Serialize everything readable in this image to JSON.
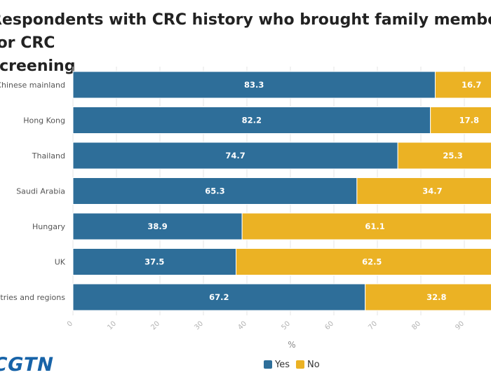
{
  "title": "Respondents with CRC history who brought family members for CRC\nscreening",
  "logo_text": "CGTN",
  "colors": {
    "yes": "#2e6e99",
    "no": "#ebb224",
    "grid": "#e6e6e6"
  },
  "chart_data": {
    "type": "bar",
    "orientation": "horizontal",
    "stacked": true,
    "categories": [
      "Chinese mainland",
      "Hong Kong",
      "Thailand",
      "Saudi Arabia",
      "Hungary",
      "UK",
      "Other countries and regions"
    ],
    "series": [
      {
        "name": "Yes",
        "values": [
          83.3,
          82.2,
          74.7,
          65.3,
          38.9,
          37.5,
          67.2
        ]
      },
      {
        "name": "No",
        "values": [
          16.7,
          17.8,
          25.3,
          34.7,
          61.1,
          62.5,
          32.8
        ]
      }
    ],
    "xlabel": "%",
    "ylabel": "",
    "xlim": [
      0,
      100
    ],
    "xticks": [
      0,
      10,
      20,
      30,
      40,
      50,
      60,
      70,
      80,
      90,
      100
    ],
    "grid": true,
    "legend_position": "bottom"
  }
}
